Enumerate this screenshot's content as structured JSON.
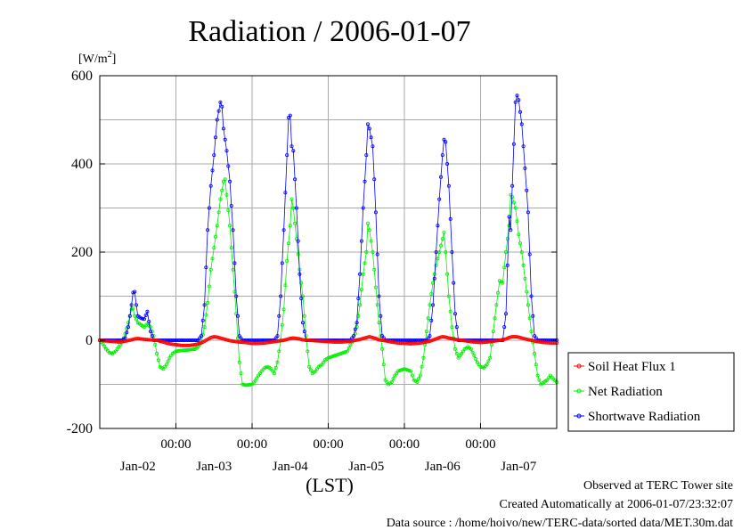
{
  "chart_data": {
    "type": "line",
    "title": "Radiation / 2006-01-07",
    "ylabel_unit": "[W/m",
    "ylabel_unit_sup": "2",
    "ylabel_unit_close": "]",
    "xlabel": "(LST)",
    "ylim": [
      -200,
      600
    ],
    "yticks": [
      -200,
      0,
      200,
      400,
      600
    ],
    "xlim_hours": [
      0,
      144
    ],
    "grid": true,
    "x_time_ticks": [
      {
        "hour": 24,
        "label": "00:00"
      },
      {
        "hour": 48,
        "label": "00:00"
      },
      {
        "hour": 72,
        "label": "00:00"
      },
      {
        "hour": 96,
        "label": "00:00"
      },
      {
        "hour": 120,
        "label": "00:00"
      }
    ],
    "x_date_ticks": [
      {
        "hour": 12,
        "label": "Jan-02"
      },
      {
        "hour": 36,
        "label": "Jan-03"
      },
      {
        "hour": 60,
        "label": "Jan-04"
      },
      {
        "hour": 84,
        "label": "Jan-05"
      },
      {
        "hour": 108,
        "label": "Jan-06"
      },
      {
        "hour": 132,
        "label": "Jan-07"
      }
    ],
    "legend_position": "bottom-right-outside",
    "series": [
      {
        "name": "Soil Heat Flux 1",
        "color": "#ff0000",
        "points": [
          [
            0,
            0
          ],
          [
            3,
            -2
          ],
          [
            6,
            -4
          ],
          [
            8,
            -2
          ],
          [
            10,
            1
          ],
          [
            11,
            3
          ],
          [
            12,
            4
          ],
          [
            13,
            3
          ],
          [
            14,
            2
          ],
          [
            16,
            1
          ],
          [
            18,
            0
          ],
          [
            20,
            -4
          ],
          [
            22,
            -8
          ],
          [
            24,
            -10
          ],
          [
            26,
            -12
          ],
          [
            28,
            -12
          ],
          [
            30,
            -10
          ],
          [
            32,
            -6
          ],
          [
            33,
            -2
          ],
          [
            34,
            2
          ],
          [
            35,
            6
          ],
          [
            36,
            8
          ],
          [
            37,
            7
          ],
          [
            38,
            5
          ],
          [
            39,
            3
          ],
          [
            40,
            1
          ],
          [
            41,
            -1
          ],
          [
            42,
            -2
          ],
          [
            44,
            -4
          ],
          [
            46,
            -5
          ],
          [
            48,
            -7
          ],
          [
            50,
            -7
          ],
          [
            52,
            -6
          ],
          [
            54,
            -4
          ],
          [
            56,
            -2
          ],
          [
            58,
            0
          ],
          [
            59,
            2
          ],
          [
            60,
            4
          ],
          [
            61,
            5
          ],
          [
            62,
            4
          ],
          [
            63,
            3
          ],
          [
            64,
            1
          ],
          [
            66,
            0
          ],
          [
            68,
            -1
          ],
          [
            70,
            -2
          ],
          [
            72,
            -3
          ],
          [
            74,
            -4
          ],
          [
            76,
            -4
          ],
          [
            78,
            -3
          ],
          [
            80,
            -1
          ],
          [
            82,
            2
          ],
          [
            84,
            6
          ],
          [
            85,
            8
          ],
          [
            86,
            6
          ],
          [
            87,
            4
          ],
          [
            88,
            1
          ],
          [
            90,
            -1
          ],
          [
            92,
            -4
          ],
          [
            94,
            -6
          ],
          [
            96,
            -7
          ],
          [
            98,
            -8
          ],
          [
            100,
            -7
          ],
          [
            102,
            -5
          ],
          [
            104,
            -2
          ],
          [
            106,
            3
          ],
          [
            107,
            6
          ],
          [
            108,
            8
          ],
          [
            109,
            7
          ],
          [
            110,
            5
          ],
          [
            112,
            2
          ],
          [
            114,
            0
          ],
          [
            116,
            -2
          ],
          [
            118,
            -4
          ],
          [
            120,
            -5
          ],
          [
            122,
            -4
          ],
          [
            124,
            -2
          ],
          [
            126,
            0
          ],
          [
            128,
            3
          ],
          [
            129,
            6
          ],
          [
            130,
            8
          ],
          [
            131,
            8
          ],
          [
            132,
            7
          ],
          [
            133,
            5
          ],
          [
            134,
            3
          ],
          [
            136,
            0
          ],
          [
            138,
            -3
          ],
          [
            140,
            -5
          ],
          [
            142,
            -6
          ],
          [
            144,
            -6
          ]
        ]
      },
      {
        "name": "Net Radiation",
        "color": "#00ee00",
        "points": [
          [
            0,
            0
          ],
          [
            1,
            -8
          ],
          [
            2,
            -20
          ],
          [
            3,
            -28
          ],
          [
            4,
            -30
          ],
          [
            5,
            -25
          ],
          [
            6,
            -15
          ],
          [
            7,
            -5
          ],
          [
            8,
            15
          ],
          [
            9,
            40
          ],
          [
            10,
            70
          ],
          [
            10.5,
            72
          ],
          [
            11,
            55
          ],
          [
            12,
            40
          ],
          [
            13,
            35
          ],
          [
            14,
            30
          ],
          [
            15,
            38
          ],
          [
            16,
            30
          ],
          [
            17,
            10
          ],
          [
            18,
            -30
          ],
          [
            19,
            -60
          ],
          [
            20,
            -65
          ],
          [
            21,
            -55
          ],
          [
            22,
            -40
          ],
          [
            23,
            -30
          ],
          [
            24,
            -25
          ],
          [
            26,
            -23
          ],
          [
            28,
            -22
          ],
          [
            30,
            -20
          ],
          [
            31,
            -15
          ],
          [
            32,
            -5
          ],
          [
            33,
            30
          ],
          [
            34,
            85
          ],
          [
            35,
            160
          ],
          [
            36,
            210
          ],
          [
            37,
            260
          ],
          [
            38,
            320
          ],
          [
            39,
            360
          ],
          [
            39.5,
            365
          ],
          [
            40,
            330
          ],
          [
            41,
            260
          ],
          [
            42,
            160
          ],
          [
            43,
            60
          ],
          [
            44,
            -50
          ],
          [
            45,
            -100
          ],
          [
            46,
            -102
          ],
          [
            48,
            -100
          ],
          [
            49,
            -92
          ],
          [
            50,
            -80
          ],
          [
            51,
            -70
          ],
          [
            52,
            -62
          ],
          [
            53,
            -60
          ],
          [
            54,
            -65
          ],
          [
            55,
            -75
          ],
          [
            56,
            -50
          ],
          [
            57,
            0
          ],
          [
            58,
            70
          ],
          [
            59,
            180
          ],
          [
            60,
            260
          ],
          [
            60.5,
            320
          ],
          [
            61,
            300
          ],
          [
            62,
            230
          ],
          [
            63,
            160
          ],
          [
            64,
            100
          ],
          [
            65,
            10
          ],
          [
            66,
            -60
          ],
          [
            67,
            -75
          ],
          [
            68,
            -70
          ],
          [
            69,
            -60
          ],
          [
            70,
            -55
          ],
          [
            71,
            -45
          ],
          [
            72,
            -40
          ],
          [
            74,
            -35
          ],
          [
            76,
            -30
          ],
          [
            78,
            -25
          ],
          [
            79,
            -10
          ],
          [
            80,
            0
          ],
          [
            81,
            30
          ],
          [
            82,
            80
          ],
          [
            83,
            150
          ],
          [
            84,
            200
          ],
          [
            84.5,
            265
          ],
          [
            85,
            250
          ],
          [
            86,
            200
          ],
          [
            87,
            120
          ],
          [
            88,
            40
          ],
          [
            89,
            -20
          ],
          [
            90,
            -90
          ],
          [
            91,
            -100
          ],
          [
            92,
            -95
          ],
          [
            93,
            -80
          ],
          [
            94,
            -70
          ],
          [
            96,
            -65
          ],
          [
            98,
            -70
          ],
          [
            99,
            -90
          ],
          [
            100,
            -95
          ],
          [
            101,
            -80
          ],
          [
            102,
            -40
          ],
          [
            103,
            20
          ],
          [
            104,
            80
          ],
          [
            105,
            130
          ],
          [
            106,
            170
          ],
          [
            107,
            200
          ],
          [
            108,
            230
          ],
          [
            108.5,
            245
          ],
          [
            109,
            200
          ],
          [
            110,
            100
          ],
          [
            111,
            30
          ],
          [
            112,
            -20
          ],
          [
            113,
            -40
          ],
          [
            114,
            -30
          ],
          [
            115,
            -20
          ],
          [
            116,
            -15
          ],
          [
            117,
            -20
          ],
          [
            118,
            -35
          ],
          [
            119,
            -50
          ],
          [
            120,
            -60
          ],
          [
            121,
            -62
          ],
          [
            122,
            -55
          ],
          [
            123,
            -40
          ],
          [
            124,
            20
          ],
          [
            125,
            80
          ],
          [
            126,
            135
          ],
          [
            127,
            130
          ],
          [
            128,
            200
          ],
          [
            129,
            260
          ],
          [
            129.5,
            330
          ],
          [
            130,
            325
          ],
          [
            131,
            300
          ],
          [
            132,
            240
          ],
          [
            133,
            200
          ],
          [
            134,
            140
          ],
          [
            135,
            80
          ],
          [
            136,
            20
          ],
          [
            137,
            -30
          ],
          [
            138,
            -80
          ],
          [
            139,
            -100
          ],
          [
            140,
            -95
          ],
          [
            141,
            -90
          ],
          [
            142,
            -80
          ],
          [
            143,
            -88
          ],
          [
            144,
            -95
          ]
        ]
      },
      {
        "name": "Shortwave Radiation",
        "color": "#0000ff",
        "points": [
          [
            0,
            0
          ],
          [
            7,
            0
          ],
          [
            8,
            5
          ],
          [
            9,
            30
          ],
          [
            10,
            80
          ],
          [
            10.5,
            108
          ],
          [
            11,
            110
          ],
          [
            11.5,
            80
          ],
          [
            12,
            55
          ],
          [
            13,
            50
          ],
          [
            14,
            48
          ],
          [
            15,
            65
          ],
          [
            16,
            20
          ],
          [
            17,
            0
          ],
          [
            31,
            0
          ],
          [
            32,
            10
          ],
          [
            33,
            80
          ],
          [
            34,
            250
          ],
          [
            35,
            350
          ],
          [
            36,
            420
          ],
          [
            37,
            500
          ],
          [
            38,
            540
          ],
          [
            38.5,
            530
          ],
          [
            39,
            480
          ],
          [
            40,
            430
          ],
          [
            41,
            360
          ],
          [
            42,
            250
          ],
          [
            43,
            100
          ],
          [
            44,
            10
          ],
          [
            45,
            0
          ],
          [
            55,
            0
          ],
          [
            56,
            10
          ],
          [
            57,
            100
          ],
          [
            58,
            250
          ],
          [
            59,
            420
          ],
          [
            59.5,
            505
          ],
          [
            60,
            510
          ],
          [
            60.5,
            440
          ],
          [
            61,
            430
          ],
          [
            62,
            300
          ],
          [
            63,
            150
          ],
          [
            64,
            40
          ],
          [
            65,
            0
          ],
          [
            79,
            0
          ],
          [
            80,
            10
          ],
          [
            81,
            40
          ],
          [
            82,
            150
          ],
          [
            83,
            300
          ],
          [
            84,
            420
          ],
          [
            84.5,
            490
          ],
          [
            85,
            480
          ],
          [
            86,
            440
          ],
          [
            87,
            290
          ],
          [
            88,
            100
          ],
          [
            89,
            10
          ],
          [
            90,
            0
          ],
          [
            103,
            0
          ],
          [
            104,
            10
          ],
          [
            105,
            80
          ],
          [
            106,
            200
          ],
          [
            107,
            320
          ],
          [
            108,
            420
          ],
          [
            108.5,
            455
          ],
          [
            109,
            450
          ],
          [
            110,
            350
          ],
          [
            111,
            200
          ],
          [
            112,
            60
          ],
          [
            113,
            0
          ],
          [
            127,
            0
          ],
          [
            128,
            60
          ],
          [
            129,
            280
          ],
          [
            129.5,
            250
          ],
          [
            130,
            350
          ],
          [
            131,
            540
          ],
          [
            131.5,
            555
          ],
          [
            132,
            545
          ],
          [
            133,
            490
          ],
          [
            134,
            390
          ],
          [
            135,
            290
          ],
          [
            136,
            100
          ],
          [
            137,
            10
          ],
          [
            138,
            0
          ],
          [
            144,
            0
          ]
        ]
      }
    ]
  },
  "footer": {
    "line1": "Observed at TERC Tower site",
    "line2": "Created Automatically at 2006-01-07/23:32:07",
    "line3": "Data source : /home/hoivo/new/TERC-data/sorted  data/MET.30m.dat"
  }
}
